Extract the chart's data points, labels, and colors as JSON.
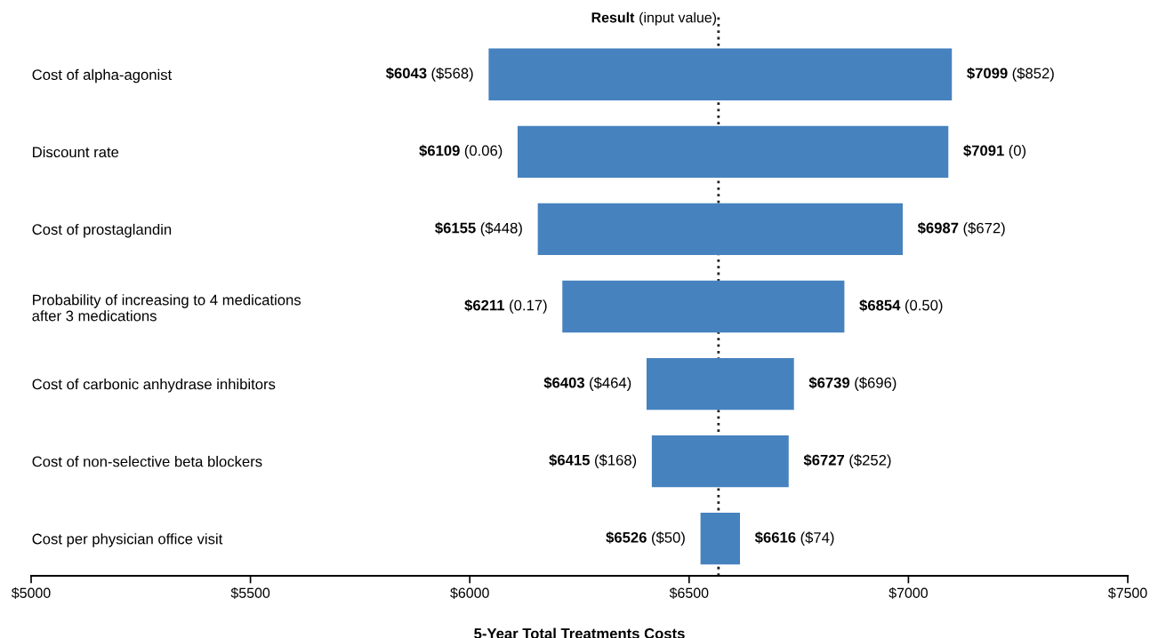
{
  "chart_data": {
    "type": "bar",
    "orientation": "horizontal",
    "xlabel": "5-Year Total Treatments Costs",
    "categories": [
      "Cost of alpha-agonist",
      "Discount rate",
      "Cost of prostaglandin",
      "Probability of increasing to 4 medications\nafter 3 medications",
      "Cost of carbonic anhydrase inhibitors",
      "Cost of non-selective beta blockers",
      "Cost per physician office visit"
    ],
    "base": [
      6043,
      6109,
      6155,
      6211,
      6403,
      6415,
      6526
    ],
    "values": [
      1056,
      982,
      832,
      643,
      336,
      312,
      90
    ],
    "color": "#4682be",
    "xlim": [
      5000,
      7500
    ],
    "xticks": [
      {
        "value": 5000,
        "label": "$5000"
      },
      {
        "value": 5500,
        "label": "$5500"
      },
      {
        "value": 6000,
        "label": "$6000"
      },
      {
        "value": 6500,
        "label": "$6500"
      },
      {
        "value": 7000,
        "label": "$7000"
      },
      {
        "value": 7500,
        "label": "$7500"
      }
    ],
    "ref_lines": [
      {
        "axis": "x",
        "value": 6567,
        "label": "Result (input value)",
        "color": "#222222",
        "line_style": "dotted"
      }
    ],
    "grid": false,
    "annotations": [
      {
        "text": "$6043 ($568)",
        "x": 6043,
        "y": "Cost of alpha-agonist"
      },
      {
        "text": "$7099 ($852)",
        "x": 7099,
        "y": "Cost of alpha-agonist"
      },
      {
        "text": "$6109 (0.06)",
        "x": 6109,
        "y": "Discount rate"
      },
      {
        "text": "$7091 (0)",
        "x": 7091,
        "y": "Discount rate"
      },
      {
        "text": "$6155 ($448)",
        "x": 6155,
        "y": "Cost of prostaglandin"
      },
      {
        "text": "$6987 ($672)",
        "x": 6987,
        "y": "Cost of prostaglandin"
      },
      {
        "text": "$6211 (0.17)",
        "x": 6211,
        "y": "Probability of increasing to 4 medications\nafter 3 medications"
      },
      {
        "text": "$6854 (0.50)",
        "x": 6854,
        "y": "Probability of increasing to 4 medications\nafter 3 medications"
      },
      {
        "text": "$6403 ($464)",
        "x": 6403,
        "y": "Cost of carbonic anhydrase inhibitors"
      },
      {
        "text": "$6739 ($696)",
        "x": 6739,
        "y": "Cost of carbonic anhydrase inhibitors"
      },
      {
        "text": "$6415 ($168)",
        "x": 6415,
        "y": "Cost of non-selective beta blockers"
      },
      {
        "text": "$6727 ($252)",
        "x": 6727,
        "y": "Cost of non-selective beta blockers"
      },
      {
        "text": "$6526 ($50)",
        "x": 6526,
        "y": "Cost per physician office visit"
      },
      {
        "text": "$6616 ($74)",
        "x": 6616,
        "y": "Cost per physician office visit"
      }
    ]
  }
}
